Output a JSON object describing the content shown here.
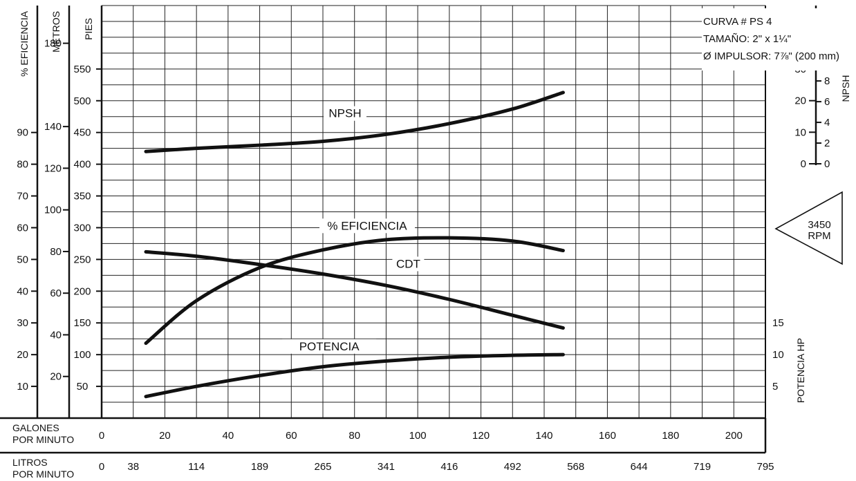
{
  "chart_data": {
    "type": "line",
    "info_box": [
      "CURVA # PS 4",
      "TAMAÑO: 2\" x 1¼\"",
      "Ø IMPULSOR: 7⅞\" (200 mm)"
    ],
    "rpm_label": [
      "3450",
      "RPM"
    ],
    "x_axis_gpm": {
      "label": [
        "GALONES",
        "POR MINUTO"
      ],
      "ticks": [
        0,
        20,
        40,
        60,
        80,
        100,
        120,
        140,
        160,
        180,
        200
      ],
      "range": [
        0,
        210
      ]
    },
    "x_axis_lpm": {
      "label": [
        "LITROS",
        "POR MINUTO"
      ],
      "ticks": [
        {
          "label": "0",
          "gpm": 0
        },
        {
          "label": "38",
          "gpm": 10
        },
        {
          "label": "114",
          "gpm": 30
        },
        {
          "label": "189",
          "gpm": 50
        },
        {
          "label": "265",
          "gpm": 70
        },
        {
          "label": "341",
          "gpm": 90
        },
        {
          "label": "416",
          "gpm": 110
        },
        {
          "label": "492",
          "gpm": 130
        },
        {
          "label": "568",
          "gpm": 150
        },
        {
          "label": "644",
          "gpm": 170
        },
        {
          "label": "719",
          "gpm": 190
        },
        {
          "label": "795",
          "gpm": 210
        }
      ]
    },
    "y_axis_pies": {
      "label": "PIES",
      "ticks": [
        50,
        100,
        150,
        200,
        250,
        300,
        350,
        400,
        450,
        500,
        550
      ],
      "range": [
        0,
        650
      ]
    },
    "y_axis_metros": {
      "label": "METROS",
      "ticks": [
        20,
        40,
        60,
        80,
        100,
        120,
        140,
        180
      ]
    },
    "y_axis_eficiencia": {
      "label": "% EFICIENCIA",
      "ticks": [
        10,
        20,
        30,
        40,
        50,
        60,
        70,
        80,
        90
      ]
    },
    "npsh_axis": {
      "label": "NPSH",
      "pies_label": "PIES",
      "metros_label": "METROS",
      "pies_ticks": [
        0,
        10,
        20,
        30
      ],
      "metros_ticks": [
        0,
        2,
        4,
        6,
        8
      ]
    },
    "potencia_axis": {
      "label": "POTENCIA HP",
      "ticks": [
        5,
        10,
        15
      ]
    },
    "series": [
      {
        "name": "NPSH",
        "unit": "pies (escala izquierda)",
        "x": [
          14,
          30,
          50,
          70,
          90,
          110,
          130,
          146
        ],
        "y": [
          420,
          425,
          430,
          436,
          447,
          464,
          487,
          513
        ]
      },
      {
        "name": "% EFICIENCIA",
        "unit": "pies (escala izquierda)",
        "x": [
          14,
          30,
          50,
          70,
          90,
          110,
          130,
          146
        ],
        "y": [
          118,
          185,
          237,
          265,
          281,
          284,
          279,
          264
        ]
      },
      {
        "name": "CDT",
        "unit": "pies",
        "x": [
          14,
          30,
          50,
          70,
          90,
          110,
          130,
          146
        ],
        "y": [
          262,
          255,
          242,
          227,
          209,
          187,
          162,
          142
        ]
      },
      {
        "name": "POTENCIA",
        "unit": "pies (escala izquierda)",
        "x": [
          14,
          30,
          50,
          70,
          90,
          110,
          130,
          146
        ],
        "y": [
          34,
          50,
          67,
          81,
          90,
          96,
          99,
          100
        ]
      }
    ],
    "curve_labels": {
      "npsh": "NPSH",
      "eficiencia": "% EFICIENCIA",
      "cdt": "CDT",
      "potencia": "POTENCIA"
    }
  }
}
